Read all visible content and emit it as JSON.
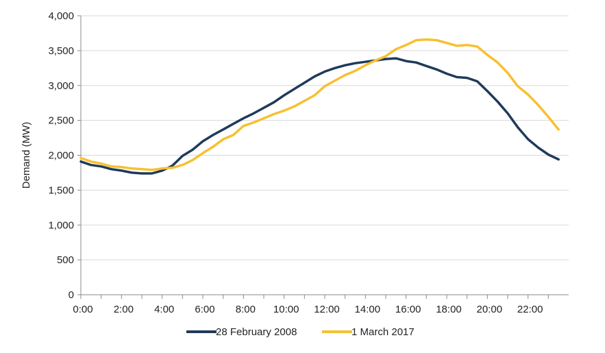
{
  "chart_data": {
    "type": "line",
    "xlabel": "",
    "ylabel": "Demand (MW)",
    "ylim": [
      0,
      4000
    ],
    "xlim": [
      0,
      24
    ],
    "y_ticks": [
      "0",
      "500",
      "1,000",
      "1,500",
      "2,000",
      "2,500",
      "3,000",
      "3,500",
      "4,000"
    ],
    "x_ticks": [
      "0:00",
      "2:00",
      "4:00",
      "6:00",
      "8:00",
      "10:00",
      "12:00",
      "14:00",
      "16:00",
      "18:00",
      "20:00",
      "22:00"
    ],
    "grid": "horizontal",
    "legend_position": "bottom-center",
    "x": [
      0,
      0.5,
      1,
      1.5,
      2,
      2.5,
      3,
      3.5,
      4,
      4.5,
      5,
      5.5,
      6,
      6.5,
      7,
      7.5,
      8,
      8.5,
      9,
      9.5,
      10,
      10.5,
      11,
      11.5,
      12,
      12.5,
      13,
      13.5,
      14,
      14.5,
      15,
      15.5,
      16,
      16.5,
      17,
      17.5,
      18,
      18.5,
      19,
      19.5,
      20,
      20.5,
      21,
      21.5,
      22,
      22.5,
      23,
      23.5
    ],
    "series": [
      {
        "name": "28 February 2008",
        "color": "#1f3a5a",
        "values": [
          1910,
          1860,
          1840,
          1800,
          1780,
          1750,
          1740,
          1740,
          1780,
          1850,
          1990,
          2080,
          2200,
          2290,
          2370,
          2450,
          2530,
          2600,
          2680,
          2760,
          2860,
          2950,
          3040,
          3130,
          3200,
          3250,
          3290,
          3320,
          3340,
          3360,
          3380,
          3390,
          3350,
          3330,
          3280,
          3230,
          3170,
          3120,
          3110,
          3060,
          2920,
          2770,
          2600,
          2400,
          2230,
          2110,
          2010,
          1940
        ]
      },
      {
        "name": "1 March 2017",
        "color": "#f7c031",
        "values": [
          1960,
          1910,
          1880,
          1840,
          1830,
          1810,
          1800,
          1790,
          1810,
          1820,
          1860,
          1930,
          2030,
          2120,
          2230,
          2290,
          2420,
          2470,
          2530,
          2590,
          2640,
          2700,
          2780,
          2860,
          2990,
          3070,
          3150,
          3210,
          3290,
          3360,
          3420,
          3520,
          3580,
          3650,
          3660,
          3650,
          3610,
          3570,
          3580,
          3560,
          3440,
          3330,
          3180,
          2990,
          2870,
          2720,
          2550,
          2370
        ]
      }
    ]
  }
}
